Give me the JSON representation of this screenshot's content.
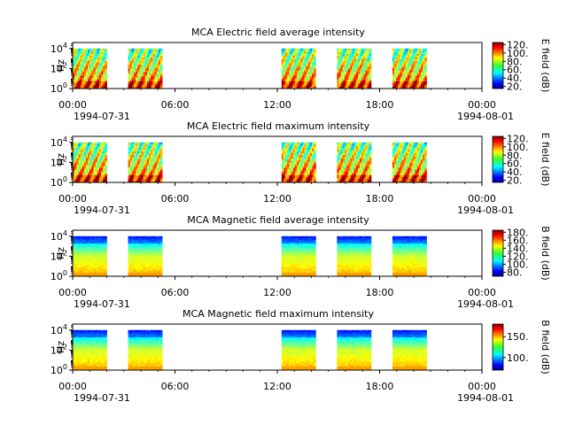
{
  "chart_data": [
    {
      "type": "heatmap",
      "title": "MCA  Electric field average intensity",
      "ylabel": "Hz",
      "y_scale": "log",
      "y_ticks": [
        {
          "exp": "0",
          "value": 1
        },
        {
          "exp": "2",
          "value": 100
        },
        {
          "exp": "4",
          "value": 10000
        }
      ],
      "x_ticks": [
        "00:00",
        "06:00",
        "12:00",
        "18:00",
        "00:00"
      ],
      "x_start_date": "1994-07-31",
      "x_end_date": "1994-08-01",
      "colorbar": {
        "label": "E field (dB)",
        "range": [
          15,
          125
        ],
        "ticks": [
          "20.",
          "40.",
          "60.",
          "80.",
          "100.",
          "120."
        ],
        "tick_values": [
          20,
          40,
          60,
          80,
          100,
          120
        ]
      },
      "coverage_blocks": [
        {
          "start": "1994-07-31 00:00",
          "end": "1994-07-31 02:00"
        },
        {
          "start": "1994-07-31 03:15",
          "end": "1994-07-31 05:15"
        },
        {
          "start": "1994-07-31 12:15",
          "end": "1994-07-31 14:15"
        },
        {
          "start": "1994-07-31 15:30",
          "end": "1994-07-31 17:30"
        },
        {
          "start": "1994-07-31 18:45",
          "end": "1994-07-31 20:45"
        }
      ],
      "style": "electric"
    },
    {
      "type": "heatmap",
      "title": "MCA  Electric field maximum intensity",
      "ylabel": "Hz",
      "y_scale": "log",
      "y_ticks": [
        {
          "exp": "0",
          "value": 1
        },
        {
          "exp": "2",
          "value": 100
        },
        {
          "exp": "4",
          "value": 10000
        }
      ],
      "x_ticks": [
        "00:00",
        "06:00",
        "12:00",
        "18:00",
        "00:00"
      ],
      "x_start_date": "1994-07-31",
      "x_end_date": "1994-08-01",
      "colorbar": {
        "label": "E field (dB)",
        "range": [
          15,
          125
        ],
        "ticks": [
          "20.",
          "40.",
          "60.",
          "80.",
          "100.",
          "120."
        ],
        "tick_values": [
          20,
          40,
          60,
          80,
          100,
          120
        ]
      },
      "coverage_blocks": [
        {
          "start": "1994-07-31 00:00",
          "end": "1994-07-31 02:00"
        },
        {
          "start": "1994-07-31 03:15",
          "end": "1994-07-31 05:15"
        },
        {
          "start": "1994-07-31 12:15",
          "end": "1994-07-31 14:15"
        },
        {
          "start": "1994-07-31 15:30",
          "end": "1994-07-31 17:30"
        },
        {
          "start": "1994-07-31 18:45",
          "end": "1994-07-31 20:45"
        }
      ],
      "style": "electric"
    },
    {
      "type": "heatmap",
      "title": "MCA  Magnetic field average intensity",
      "ylabel": "Hz",
      "y_scale": "log",
      "y_ticks": [
        {
          "exp": "0",
          "value": 1
        },
        {
          "exp": "2",
          "value": 100
        },
        {
          "exp": "4",
          "value": 10000
        }
      ],
      "x_ticks": [
        "00:00",
        "06:00",
        "12:00",
        "18:00",
        "00:00"
      ],
      "x_start_date": "1994-07-31",
      "x_end_date": "1994-08-01",
      "colorbar": {
        "label": "B field (dB)",
        "range": [
          70,
          185
        ],
        "ticks": [
          "80.",
          "100.",
          "120.",
          "140.",
          "160.",
          "180."
        ],
        "tick_values": [
          80,
          100,
          120,
          140,
          160,
          180
        ]
      },
      "coverage_blocks": [
        {
          "start": "1994-07-31 00:00",
          "end": "1994-07-31 02:00"
        },
        {
          "start": "1994-07-31 03:15",
          "end": "1994-07-31 05:15"
        },
        {
          "start": "1994-07-31 12:15",
          "end": "1994-07-31 14:15"
        },
        {
          "start": "1994-07-31 15:30",
          "end": "1994-07-31 17:30"
        },
        {
          "start": "1994-07-31 18:45",
          "end": "1994-07-31 20:45"
        }
      ],
      "style": "magnetic"
    },
    {
      "type": "heatmap",
      "title": "MCA  Magnetic field maximum intensity",
      "ylabel": "Hz",
      "y_scale": "log",
      "y_ticks": [
        {
          "exp": "0",
          "value": 1
        },
        {
          "exp": "2",
          "value": 100
        },
        {
          "exp": "4",
          "value": 10000
        }
      ],
      "x_ticks": [
        "00:00",
        "06:00",
        "12:00",
        "18:00",
        "00:00"
      ],
      "x_start_date": "1994-07-31",
      "x_end_date": "1994-08-01",
      "colorbar": {
        "label": "B field (dB)",
        "range": [
          70,
          180
        ],
        "ticks": [
          "100.",
          "150."
        ],
        "tick_values": [
          100,
          150
        ]
      },
      "coverage_blocks": [
        {
          "start": "1994-07-31 00:00",
          "end": "1994-07-31 02:00"
        },
        {
          "start": "1994-07-31 03:15",
          "end": "1994-07-31 05:15"
        },
        {
          "start": "1994-07-31 12:15",
          "end": "1994-07-31 14:15"
        },
        {
          "start": "1994-07-31 15:30",
          "end": "1994-07-31 17:30"
        },
        {
          "start": "1994-07-31 18:45",
          "end": "1994-07-31 20:45"
        }
      ],
      "style": "magnetic"
    }
  ]
}
